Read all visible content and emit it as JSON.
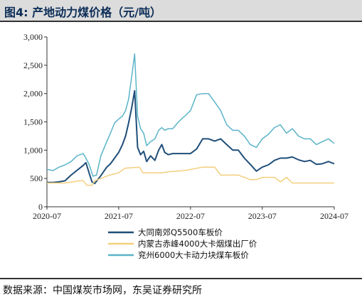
{
  "header": {
    "title": "图4:  产地动力煤价格（元/吨）"
  },
  "footer": {
    "source": "数据来源：中国煤炭市场网，东吴证券研究所"
  },
  "colors": {
    "series1": "#1f4e79",
    "series2": "#f2cf7c",
    "series3": "#5ab4c8",
    "axis": "#333333"
  },
  "chart_data": {
    "type": "line",
    "title": "",
    "xlabel": "",
    "ylabel": "",
    "ylim": [
      0,
      3000
    ],
    "yticks": [
      0,
      500,
      1000,
      1500,
      2000,
      2500,
      3000
    ],
    "ytick_labels": [
      "0",
      "500",
      "1,000",
      "1,500",
      "2,000",
      "2,500",
      "3,000"
    ],
    "xticks": [
      "2020-07",
      "2021-07",
      "2022-07",
      "2023-07",
      "2024-07"
    ],
    "xlim": [
      "2020-07",
      "2024-07"
    ],
    "grid": false,
    "legend": "bottom",
    "series": [
      {
        "name": "大同南郊Q5500车板价",
        "color": "#1f4e79",
        "points": [
          [
            "2020-07-01",
            430
          ],
          [
            "2020-08-01",
            430
          ],
          [
            "2020-09-01",
            440
          ],
          [
            "2020-10-01",
            460
          ],
          [
            "2020-11-01",
            560
          ],
          [
            "2021-01-01",
            730
          ],
          [
            "2021-01-15",
            780
          ],
          [
            "2021-02-01",
            590
          ],
          [
            "2021-02-15",
            440
          ],
          [
            "2021-03-01",
            410
          ],
          [
            "2021-04-01",
            550
          ],
          [
            "2021-05-01",
            700
          ],
          [
            "2021-05-20",
            760
          ],
          [
            "2021-06-10",
            860
          ],
          [
            "2021-07-01",
            960
          ],
          [
            "2021-07-20",
            1100
          ],
          [
            "2021-08-05",
            1250
          ],
          [
            "2021-08-20",
            1480
          ],
          [
            "2021-09-05",
            1750
          ],
          [
            "2021-09-20",
            2050
          ],
          [
            "2021-10-05",
            1050
          ],
          [
            "2021-10-20",
            920
          ],
          [
            "2021-11-05",
            980
          ],
          [
            "2021-11-20",
            800
          ],
          [
            "2021-12-10",
            900
          ],
          [
            "2022-01-01",
            820
          ],
          [
            "2022-01-20",
            1000
          ],
          [
            "2022-02-05",
            1100
          ],
          [
            "2022-02-20",
            960
          ],
          [
            "2022-03-10",
            920
          ],
          [
            "2022-04-01",
            940
          ],
          [
            "2022-05-01",
            940
          ],
          [
            "2022-06-01",
            940
          ],
          [
            "2022-07-01",
            940
          ],
          [
            "2022-08-01",
            1020
          ],
          [
            "2022-09-01",
            1200
          ],
          [
            "2022-10-01",
            1200
          ],
          [
            "2022-11-01",
            1160
          ],
          [
            "2022-12-01",
            1200
          ],
          [
            "2023-01-01",
            1100
          ],
          [
            "2023-02-01",
            1000
          ],
          [
            "2023-03-01",
            1000
          ],
          [
            "2023-04-01",
            860
          ],
          [
            "2023-05-01",
            750
          ],
          [
            "2023-06-01",
            630
          ],
          [
            "2023-07-01",
            700
          ],
          [
            "2023-08-01",
            740
          ],
          [
            "2023-09-01",
            820
          ],
          [
            "2023-10-01",
            860
          ],
          [
            "2023-11-01",
            860
          ],
          [
            "2023-12-01",
            880
          ],
          [
            "2024-01-01",
            830
          ],
          [
            "2024-02-01",
            800
          ],
          [
            "2024-03-01",
            820
          ],
          [
            "2024-04-01",
            750
          ],
          [
            "2024-05-01",
            760
          ],
          [
            "2024-06-01",
            800
          ],
          [
            "2024-07-01",
            760
          ]
        ]
      },
      {
        "name": "内蒙古赤峰4000大卡烟煤出厂价",
        "color": "#f2cf7c",
        "points": [
          [
            "2020-07-01",
            420
          ],
          [
            "2020-10-01",
            420
          ],
          [
            "2020-12-15",
            460
          ],
          [
            "2021-01-01",
            460
          ],
          [
            "2021-01-20",
            380
          ],
          [
            "2021-02-15",
            380
          ],
          [
            "2021-03-01",
            460
          ],
          [
            "2021-04-01",
            500
          ],
          [
            "2021-05-15",
            560
          ],
          [
            "2021-07-01",
            600
          ],
          [
            "2021-08-01",
            680
          ],
          [
            "2021-10-15",
            700
          ],
          [
            "2021-11-01",
            600
          ],
          [
            "2022-02-01",
            600
          ],
          [
            "2022-03-15",
            620
          ],
          [
            "2022-06-01",
            640
          ],
          [
            "2022-08-01",
            680
          ],
          [
            "2022-09-01",
            700
          ],
          [
            "2022-11-01",
            700
          ],
          [
            "2022-12-01",
            560
          ],
          [
            "2023-03-01",
            560
          ],
          [
            "2023-04-01",
            520
          ],
          [
            "2023-05-01",
            480
          ],
          [
            "2023-06-01",
            480
          ],
          [
            "2023-07-01",
            520
          ],
          [
            "2023-09-01",
            520
          ],
          [
            "2023-10-01",
            440
          ],
          [
            "2023-11-01",
            520
          ],
          [
            "2023-12-01",
            420
          ],
          [
            "2024-07-01",
            420
          ]
        ]
      },
      {
        "name": "兖州6000大卡动力块煤车板价",
        "color": "#5ab4c8",
        "points": [
          [
            "2020-07-01",
            660
          ],
          [
            "2020-08-01",
            640
          ],
          [
            "2020-09-01",
            700
          ],
          [
            "2020-10-01",
            740
          ],
          [
            "2020-11-01",
            800
          ],
          [
            "2020-12-01",
            900
          ],
          [
            "2021-01-01",
            940
          ],
          [
            "2021-01-15",
            860
          ],
          [
            "2021-02-01",
            740
          ],
          [
            "2021-02-20",
            540
          ],
          [
            "2021-03-10",
            560
          ],
          [
            "2021-04-01",
            900
          ],
          [
            "2021-05-01",
            1150
          ],
          [
            "2021-05-20",
            1300
          ],
          [
            "2021-06-10",
            1480
          ],
          [
            "2021-07-01",
            1550
          ],
          [
            "2021-07-20",
            1600
          ],
          [
            "2021-08-05",
            1700
          ],
          [
            "2021-08-20",
            1900
          ],
          [
            "2021-09-05",
            2300
          ],
          [
            "2021-09-20",
            2700
          ],
          [
            "2021-10-05",
            1600
          ],
          [
            "2021-10-20",
            1380
          ],
          [
            "2021-11-05",
            1300
          ],
          [
            "2021-11-20",
            1080
          ],
          [
            "2021-12-10",
            1150
          ],
          [
            "2022-01-01",
            1200
          ],
          [
            "2022-01-20",
            1350
          ],
          [
            "2022-02-05",
            1400
          ],
          [
            "2022-02-20",
            1350
          ],
          [
            "2022-03-10",
            1380
          ],
          [
            "2022-04-01",
            1380
          ],
          [
            "2022-05-01",
            1500
          ],
          [
            "2022-06-01",
            1600
          ],
          [
            "2022-07-01",
            1700
          ],
          [
            "2022-08-01",
            1980
          ],
          [
            "2022-09-01",
            2000
          ],
          [
            "2022-10-01",
            2000
          ],
          [
            "2022-11-01",
            1850
          ],
          [
            "2022-12-01",
            1700
          ],
          [
            "2023-01-01",
            1450
          ],
          [
            "2023-02-01",
            1350
          ],
          [
            "2023-03-01",
            1350
          ],
          [
            "2023-04-01",
            1250
          ],
          [
            "2023-05-01",
            1100
          ],
          [
            "2023-06-01",
            1050
          ],
          [
            "2023-07-01",
            1200
          ],
          [
            "2023-08-01",
            1280
          ],
          [
            "2023-09-01",
            1400
          ],
          [
            "2023-10-01",
            1450
          ],
          [
            "2023-11-01",
            1300
          ],
          [
            "2023-12-01",
            1380
          ],
          [
            "2024-01-01",
            1250
          ],
          [
            "2024-02-01",
            1200
          ],
          [
            "2024-03-01",
            1200
          ],
          [
            "2024-04-01",
            1100
          ],
          [
            "2024-05-01",
            1150
          ],
          [
            "2024-06-01",
            1200
          ],
          [
            "2024-07-01",
            1120
          ]
        ]
      }
    ]
  }
}
